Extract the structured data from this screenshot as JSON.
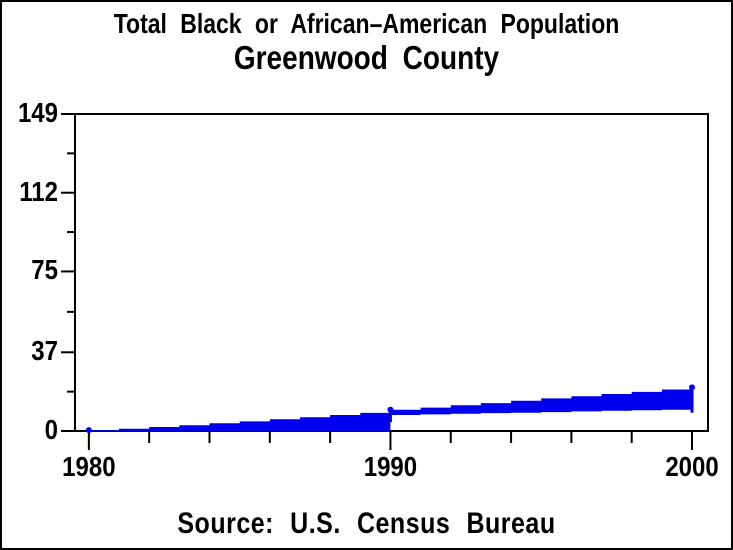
{
  "chart_data": {
    "type": "area",
    "title": "Total Black or African–American Population",
    "subtitle": "Greenwood County",
    "footnote": "Source: U.S. Census Bureau",
    "color": "#0000ee",
    "axis_color": "#000000",
    "background": "#ffffff",
    "grid": false,
    "legend": "none",
    "xlim": [
      1979.54,
      2000.53
    ],
    "ylim": [
      0,
      149
    ],
    "y_ticks_major": [
      0,
      37,
      75,
      112,
      149
    ],
    "y_ticks_minor": [
      18.5,
      56,
      93.5,
      130.5
    ],
    "x_ticks_major": [
      1980,
      1990,
      2000
    ],
    "x_ticks_minor": [
      1982,
      1984,
      1986,
      1988,
      1992,
      1994,
      1996,
      1998
    ],
    "series": [
      {
        "name": "annual-estimates-1980-1990",
        "style": "step-area-filled-to-zero",
        "x": [
          1980,
          1981,
          1982,
          1983,
          1984,
          1985,
          1986,
          1987,
          1988,
          1989,
          1990
        ],
        "values": [
          0.4,
          1.1,
          1.9,
          2.7,
          3.6,
          4.5,
          5.5,
          6.5,
          7.5,
          8.5,
          9.5
        ]
      },
      {
        "name": "band-upper-1990-2000",
        "style": "step-band-upper-edge",
        "x": [
          1990,
          1991,
          1992,
          1993,
          1994,
          1995,
          1996,
          1997,
          1998,
          1999,
          2000
        ],
        "values": [
          10.0,
          11.0,
          12.1,
          13.1,
          14.2,
          15.3,
          16.3,
          17.4,
          18.4,
          19.5,
          20.5
        ]
      },
      {
        "name": "band-lower-1990-2000",
        "style": "step-band-lower-edge",
        "x": [
          1990,
          1991,
          1992,
          1993,
          1994,
          1995,
          1996,
          1997,
          1998,
          1999,
          2000
        ],
        "values": [
          7.5,
          7.8,
          8.1,
          8.4,
          8.6,
          8.9,
          9.2,
          9.5,
          9.8,
          10.0,
          10.3
        ]
      }
    ],
    "markers": [
      {
        "x": 1980,
        "y": 0.4,
        "shape": "dot"
      },
      {
        "x": 1990,
        "y": 10.0,
        "shape": "dot"
      },
      {
        "x": 1990,
        "y1": 4.2,
        "y2": 11.2,
        "shape": "vbar"
      },
      {
        "x": 2000,
        "y": 20.5,
        "shape": "dot"
      },
      {
        "x": 2000,
        "y1": 8.6,
        "y2": 20.8,
        "shape": "vbar"
      }
    ]
  }
}
